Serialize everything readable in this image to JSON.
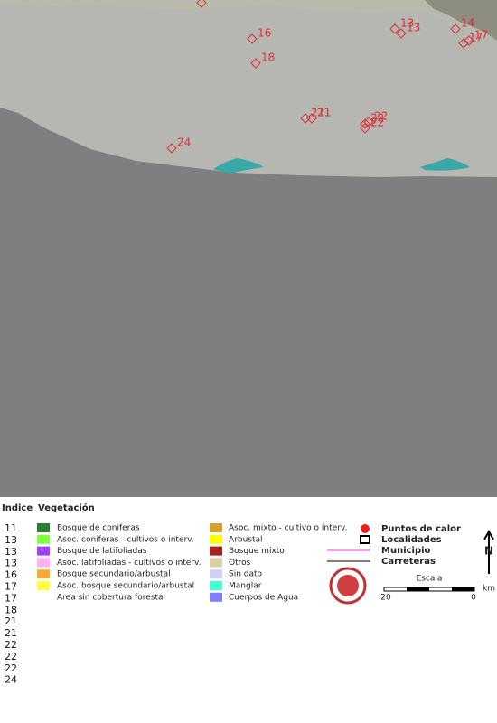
{
  "map": {
    "markers": [
      {
        "label": "16"
      },
      {
        "label": "18"
      },
      {
        "label": "13"
      },
      {
        "label": "13"
      },
      {
        "label": "14"
      },
      {
        "label": "17"
      },
      {
        "label": "17"
      },
      {
        "label": "21"
      },
      {
        "label": "21"
      },
      {
        "label": "22"
      },
      {
        "label": "22"
      },
      {
        "label": "22"
      },
      {
        "label": "24"
      }
    ]
  },
  "legend": {
    "index_title": "Indice",
    "vegetation_title": "Vegetación",
    "index": [
      "11",
      "13",
      "13",
      "13",
      "16",
      "17",
      "17",
      "18",
      "21",
      "21",
      "22",
      "22",
      "22",
      "24"
    ],
    "vegetation": [
      {
        "label": "Bosque de coniferas",
        "color": "#2e7d32"
      },
      {
        "label": "Asoc. coniferas - cultivos o interv.",
        "color": "#80ff40"
      },
      {
        "label": "Bosque de latifoliadas",
        "color": "#a040ff"
      },
      {
        "label": "Asoc. latifoliadas - cultivos o interv.",
        "color": "#ffb0f0"
      },
      {
        "label": "Bosque secundario/arbustal",
        "color": "#ffa830"
      },
      {
        "label": "Asoc. bosque secundario/arbustal",
        "color": "#ffff40"
      },
      {
        "label": "Area sin cobertura forestal",
        "color": "#ffffff"
      },
      {
        "label": "Asoc. mixto - cultivo o interv.",
        "color": "#d4a030"
      },
      {
        "label": "Arbustal",
        "color": "#ffff00"
      },
      {
        "label": "Bosque mixto",
        "color": "#a82020"
      },
      {
        "label": "Otros",
        "color": "#d8d0a0"
      },
      {
        "label": "Sin dato",
        "color": "#d0d0f0"
      },
      {
        "label": "Manglar",
        "color": "#40ffd0"
      },
      {
        "label": "Cuerpos de Agua",
        "color": "#8080ff"
      }
    ],
    "symbols": {
      "hotspots": "Puntos de calor",
      "localities": "Localidades",
      "municipality": "Municipio",
      "roads": "Carreteras"
    },
    "scale": {
      "title": "Escala",
      "left": "20",
      "right": "0",
      "unit": "km"
    },
    "north": "N"
  }
}
